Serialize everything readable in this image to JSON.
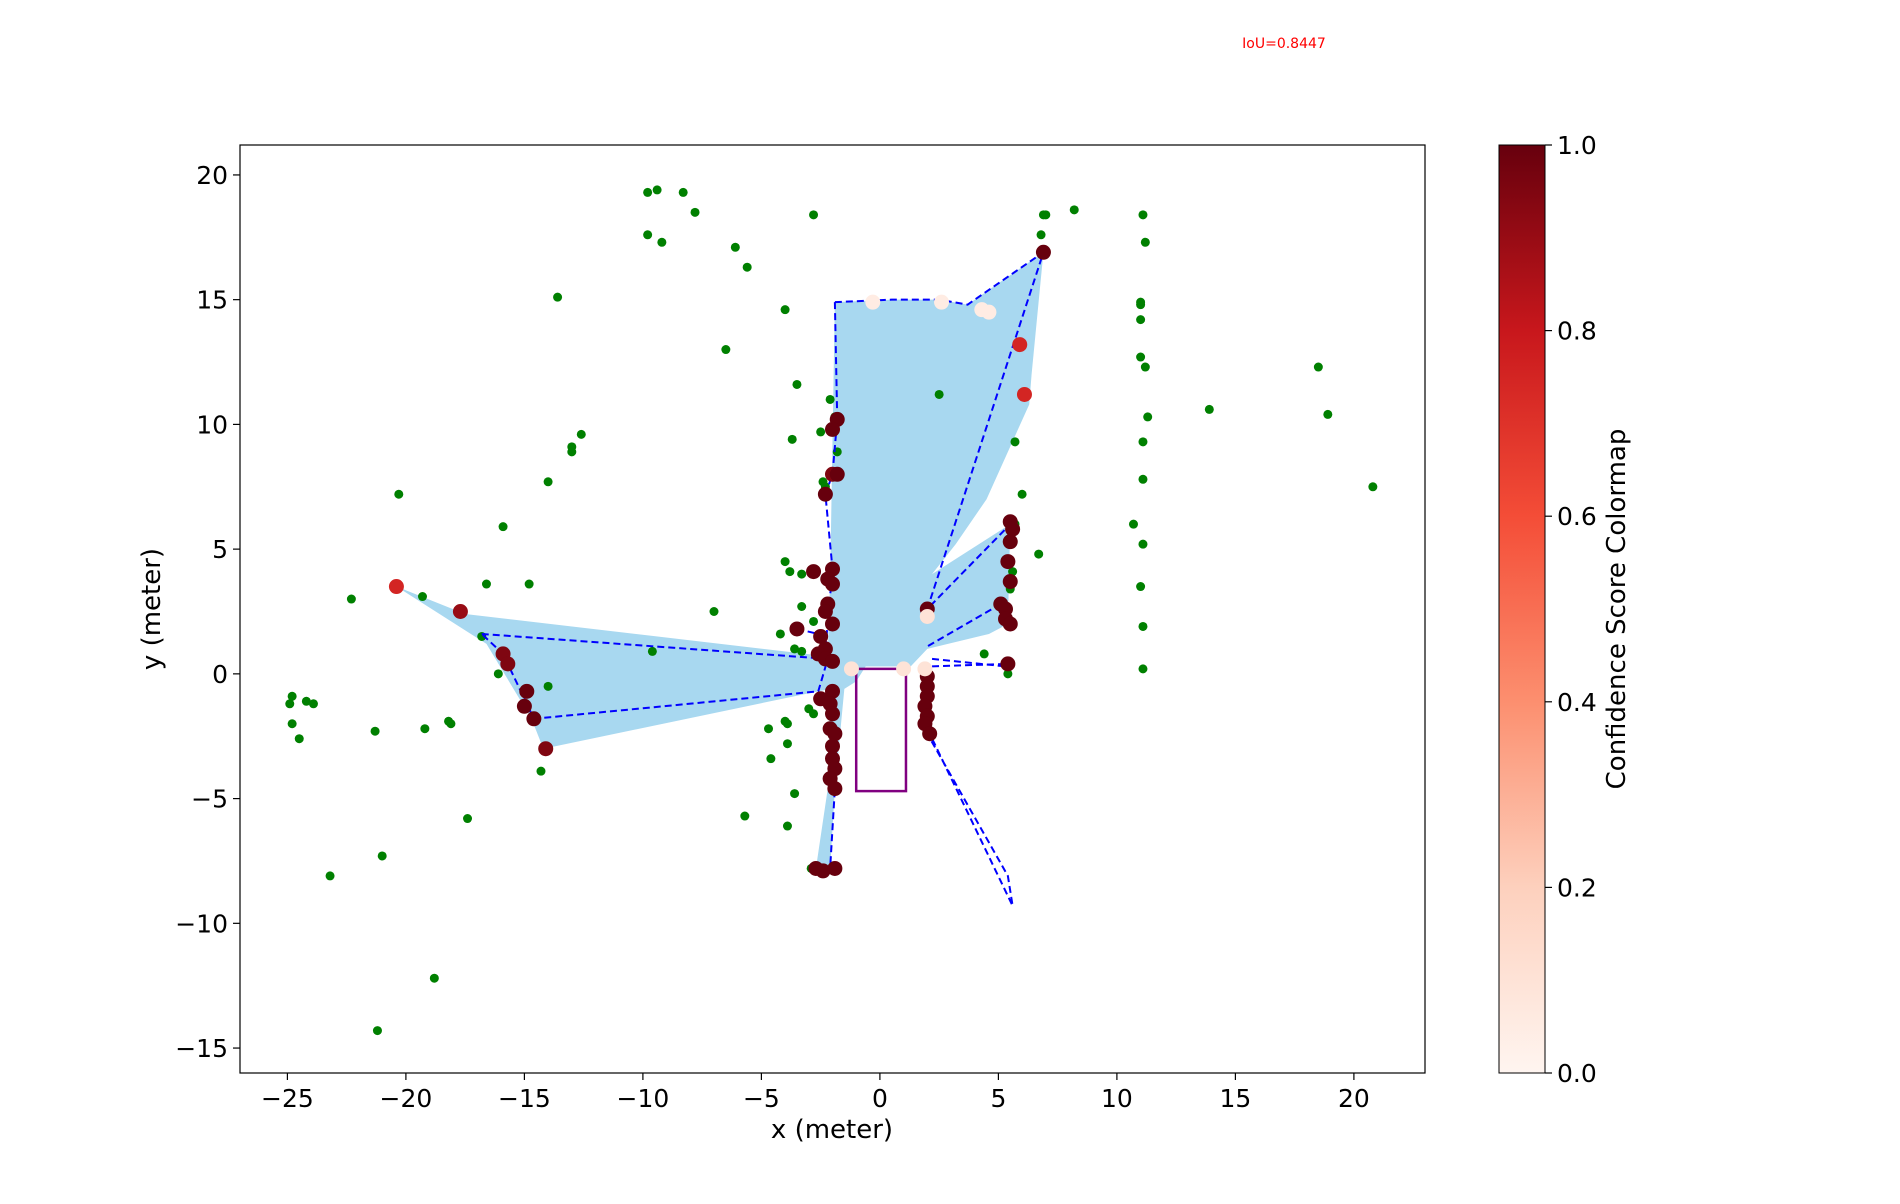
{
  "annotation": {
    "text": "IoU=0.8447",
    "color": "#ff0000"
  },
  "colorbar": {
    "label": "Confidence Score Colormap",
    "ticks": [
      "0.0",
      "0.2",
      "0.4",
      "0.6",
      "0.8",
      "1.0"
    ],
    "range": [
      0.0,
      1.0
    ],
    "colormap": "Reds",
    "stops": [
      "#fff5f0",
      "#fdd0bd",
      "#fc8f6f",
      "#f44d37",
      "#c8171c",
      "#67000d"
    ]
  },
  "colors": {
    "green_points": "#008000",
    "polygon_fill": "#a8d8f0",
    "outline": "#0000ff",
    "vehicle": "#800080"
  },
  "chart_data": {
    "type": "scatter",
    "title": "",
    "xlabel": "x (meter)",
    "ylabel": "y (meter)",
    "xlim": [
      -27,
      23
    ],
    "ylim": [
      -16,
      21.2
    ],
    "xticks": [
      -25,
      -20,
      -15,
      -10,
      -5,
      0,
      5,
      10,
      15,
      20
    ],
    "yticks": [
      -15,
      -10,
      -5,
      0,
      5,
      10,
      15,
      20
    ],
    "xtick_labels": [
      "−25",
      "−20",
      "−15",
      "−10",
      "−5",
      "0",
      "5",
      "10",
      "15",
      "20"
    ],
    "ytick_labels": [
      "−15",
      "−10",
      "−5",
      "0",
      "5",
      "10",
      "15",
      "20"
    ],
    "grid": false,
    "legend": "none",
    "green_points": [
      [
        -9.8,
        19.3
      ],
      [
        -9.4,
        19.4
      ],
      [
        -8.3,
        19.3
      ],
      [
        -7.8,
        18.5
      ],
      [
        -9.8,
        17.6
      ],
      [
        -9.2,
        17.3
      ],
      [
        -6.1,
        17.1
      ],
      [
        -5.6,
        16.3
      ],
      [
        -2.8,
        18.4
      ],
      [
        -13.6,
        15.1
      ],
      [
        -4.0,
        14.6
      ],
      [
        -6.5,
        13.0
      ],
      [
        -3.5,
        11.6
      ],
      [
        -2.1,
        11.0
      ],
      [
        -1.9,
        10.3
      ],
      [
        -2.5,
        9.7
      ],
      [
        -3.7,
        9.4
      ],
      [
        -1.8,
        8.9
      ],
      [
        -12.6,
        9.6
      ],
      [
        -13.0,
        9.1
      ],
      [
        -13.0,
        8.9
      ],
      [
        -14.0,
        7.7
      ],
      [
        -2.4,
        7.7
      ],
      [
        -2.3,
        7.5
      ],
      [
        -20.3,
        7.2
      ],
      [
        -15.9,
        5.9
      ],
      [
        -4.0,
        4.5
      ],
      [
        -3.8,
        4.1
      ],
      [
        -3.3,
        4.0
      ],
      [
        -2.0,
        4.3
      ],
      [
        -22.3,
        3.0
      ],
      [
        -19.3,
        3.1
      ],
      [
        -16.6,
        3.6
      ],
      [
        -14.8,
        3.6
      ],
      [
        -7.0,
        2.5
      ],
      [
        -3.3,
        2.7
      ],
      [
        -2.8,
        2.1
      ],
      [
        -4.2,
        1.6
      ],
      [
        -3.6,
        1.0
      ],
      [
        -3.3,
        0.9
      ],
      [
        -9.6,
        0.9
      ],
      [
        -16.8,
        1.5
      ],
      [
        -15.9,
        0.8
      ],
      [
        -16.1,
        0.0
      ],
      [
        -14.0,
        -0.5
      ],
      [
        -24.8,
        -0.9
      ],
      [
        -24.9,
        -1.2
      ],
      [
        -24.2,
        -1.1
      ],
      [
        -23.9,
        -1.2
      ],
      [
        -24.8,
        -2.0
      ],
      [
        -24.5,
        -2.6
      ],
      [
        -21.3,
        -2.3
      ],
      [
        -19.2,
        -2.2
      ],
      [
        -18.2,
        -1.9
      ],
      [
        -18.1,
        -2.0
      ],
      [
        -14.3,
        -3.9
      ],
      [
        -4.7,
        -2.2
      ],
      [
        -4.0,
        -1.9
      ],
      [
        -3.9,
        -2.0
      ],
      [
        -3.0,
        -1.4
      ],
      [
        -2.8,
        -1.6
      ],
      [
        -3.9,
        -2.8
      ],
      [
        -4.6,
        -3.4
      ],
      [
        -3.6,
        -4.8
      ],
      [
        -5.7,
        -5.7
      ],
      [
        -3.9,
        -6.1
      ],
      [
        -2.9,
        -7.8
      ],
      [
        -17.4,
        -5.8
      ],
      [
        -21.0,
        -7.3
      ],
      [
        -23.2,
        -8.1
      ],
      [
        -18.8,
        -12.2
      ],
      [
        -21.2,
        -14.3
      ],
      [
        2.5,
        11.2
      ],
      [
        5.7,
        9.3
      ],
      [
        6.0,
        7.2
      ],
      [
        6.7,
        4.8
      ],
      [
        5.6,
        4.1
      ],
      [
        5.5,
        3.4
      ],
      [
        5.7,
        6.0
      ],
      [
        4.4,
        0.8
      ],
      [
        5.4,
        0.0
      ],
      [
        6.9,
        18.4
      ],
      [
        7.0,
        18.4
      ],
      [
        8.2,
        18.6
      ],
      [
        6.8,
        17.6
      ],
      [
        11.1,
        18.4
      ],
      [
        11.2,
        17.3
      ],
      [
        11.0,
        14.9
      ],
      [
        11.0,
        14.8
      ],
      [
        11.0,
        14.2
      ],
      [
        11.0,
        12.7
      ],
      [
        11.2,
        12.3
      ],
      [
        11.3,
        10.3
      ],
      [
        11.1,
        9.3
      ],
      [
        11.1,
        7.8
      ],
      [
        10.7,
        6.0
      ],
      [
        11.1,
        5.2
      ],
      [
        11.0,
        3.5
      ],
      [
        11.1,
        1.9
      ],
      [
        11.1,
        0.2
      ],
      [
        13.9,
        10.6
      ],
      [
        18.5,
        12.3
      ],
      [
        18.9,
        10.4
      ],
      [
        20.8,
        7.5
      ]
    ],
    "confidence_points": [
      {
        "x": 6.9,
        "y": 16.9,
        "c": 1.0
      },
      {
        "x": 5.9,
        "y": 13.2,
        "c": 0.75
      },
      {
        "x": 6.1,
        "y": 11.2,
        "c": 0.75
      },
      {
        "x": 4.6,
        "y": 14.5,
        "c": 0.05
      },
      {
        "x": 4.3,
        "y": 14.6,
        "c": 0.05
      },
      {
        "x": 2.6,
        "y": 14.9,
        "c": 0.05
      },
      {
        "x": -0.3,
        "y": 14.9,
        "c": 0.05
      },
      {
        "x": 2.0,
        "y": 2.6,
        "c": 1.0
      },
      {
        "x": 2.0,
        "y": 2.3,
        "c": 0.1
      },
      {
        "x": -20.4,
        "y": 3.5,
        "c": 0.75
      },
      {
        "x": -17.7,
        "y": 2.5,
        "c": 0.9
      },
      {
        "x": -15.9,
        "y": 0.8,
        "c": 0.95
      },
      {
        "x": -15.7,
        "y": 0.4,
        "c": 0.95
      },
      {
        "x": -14.9,
        "y": -0.7,
        "c": 1.0
      },
      {
        "x": -15.0,
        "y": -1.3,
        "c": 1.0
      },
      {
        "x": -14.6,
        "y": -1.8,
        "c": 1.0
      },
      {
        "x": -14.1,
        "y": -3.0,
        "c": 0.95
      },
      {
        "x": -1.8,
        "y": 10.2,
        "c": 1.0
      },
      {
        "x": -2.0,
        "y": 9.8,
        "c": 1.0
      },
      {
        "x": -2.0,
        "y": 8.0,
        "c": 0.95
      },
      {
        "x": -1.8,
        "y": 8.0,
        "c": 1.0
      },
      {
        "x": -2.3,
        "y": 7.2,
        "c": 1.0
      },
      {
        "x": -2.0,
        "y": 4.2,
        "c": 1.0
      },
      {
        "x": -2.2,
        "y": 3.8,
        "c": 1.0
      },
      {
        "x": -2.0,
        "y": 3.6,
        "c": 1.0
      },
      {
        "x": -2.8,
        "y": 4.1,
        "c": 1.0
      },
      {
        "x": -2.2,
        "y": 2.8,
        "c": 1.0
      },
      {
        "x": -2.3,
        "y": 2.5,
        "c": 1.0
      },
      {
        "x": -2.0,
        "y": 2.0,
        "c": 1.0
      },
      {
        "x": -2.5,
        "y": 1.5,
        "c": 1.0
      },
      {
        "x": -2.3,
        "y": 1.0,
        "c": 1.0
      },
      {
        "x": -2.6,
        "y": 0.8,
        "c": 1.0
      },
      {
        "x": -2.3,
        "y": 0.6,
        "c": 1.0
      },
      {
        "x": -2.0,
        "y": 0.5,
        "c": 1.0
      },
      {
        "x": -3.5,
        "y": 1.8,
        "c": 1.0
      },
      {
        "x": -2.0,
        "y": -0.7,
        "c": 1.0
      },
      {
        "x": -2.5,
        "y": -1.0,
        "c": 1.0
      },
      {
        "x": -2.1,
        "y": -1.2,
        "c": 1.0
      },
      {
        "x": -2.0,
        "y": -1.6,
        "c": 1.0
      },
      {
        "x": -2.1,
        "y": -2.2,
        "c": 1.0
      },
      {
        "x": -1.9,
        "y": -2.4,
        "c": 1.0
      },
      {
        "x": -2.0,
        "y": -2.9,
        "c": 1.0
      },
      {
        "x": -2.0,
        "y": -3.4,
        "c": 1.0
      },
      {
        "x": -1.9,
        "y": -3.8,
        "c": 1.0
      },
      {
        "x": -2.1,
        "y": -4.2,
        "c": 1.0
      },
      {
        "x": -1.9,
        "y": -4.6,
        "c": 1.0
      },
      {
        "x": -2.7,
        "y": -7.8,
        "c": 1.0
      },
      {
        "x": -2.4,
        "y": -7.9,
        "c": 1.0
      },
      {
        "x": -1.9,
        "y": -7.8,
        "c": 1.0
      },
      {
        "x": 2.0,
        "y": -0.1,
        "c": 1.0
      },
      {
        "x": 2.0,
        "y": -0.5,
        "c": 1.0
      },
      {
        "x": 2.0,
        "y": -0.9,
        "c": 1.0
      },
      {
        "x": 1.9,
        "y": -1.3,
        "c": 1.0
      },
      {
        "x": 2.0,
        "y": -1.7,
        "c": 1.0
      },
      {
        "x": 1.9,
        "y": -2.0,
        "c": 1.0
      },
      {
        "x": 2.1,
        "y": -2.4,
        "c": 1.0
      },
      {
        "x": 5.5,
        "y": 6.1,
        "c": 1.0
      },
      {
        "x": 5.6,
        "y": 5.8,
        "c": 1.0
      },
      {
        "x": 5.5,
        "y": 5.3,
        "c": 1.0
      },
      {
        "x": 5.4,
        "y": 4.5,
        "c": 1.0
      },
      {
        "x": 5.5,
        "y": 3.7,
        "c": 1.0
      },
      {
        "x": 5.1,
        "y": 2.8,
        "c": 1.0
      },
      {
        "x": 5.3,
        "y": 2.6,
        "c": 1.0
      },
      {
        "x": 5.3,
        "y": 2.2,
        "c": 1.0
      },
      {
        "x": 5.5,
        "y": 2.0,
        "c": 1.0
      },
      {
        "x": 5.4,
        "y": 0.4,
        "c": 1.0
      },
      {
        "x": 1.9,
        "y": 0.2,
        "c": 0.1
      },
      {
        "x": -1.2,
        "y": 0.2,
        "c": 0.1
      },
      {
        "x": 1.0,
        "y": 0.2,
        "c": 0.1
      }
    ],
    "free_space_polygon": [
      [
        -1.9,
        14.9
      ],
      [
        0.5,
        15.0
      ],
      [
        2.5,
        15.0
      ],
      [
        3.7,
        14.8
      ],
      [
        6.9,
        16.9
      ],
      [
        6.4,
        12.0
      ],
      [
        6.3,
        10.8
      ],
      [
        4.5,
        7.0
      ],
      [
        3.2,
        5.2
      ],
      [
        2.2,
        4.0
      ],
      [
        5.5,
        6.0
      ],
      [
        5.4,
        2.0
      ],
      [
        4.6,
        1.6
      ],
      [
        2.0,
        1.0
      ],
      [
        1.3,
        0.3
      ],
      [
        -0.6,
        0.3
      ],
      [
        -1.0,
        -0.3
      ],
      [
        -1.5,
        -0.6
      ],
      [
        -1.9,
        -4.6
      ],
      [
        -2.1,
        -7.8
      ],
      [
        -2.7,
        -7.8
      ],
      [
        -2.2,
        -4.6
      ],
      [
        -2.1,
        -0.6
      ],
      [
        -14.2,
        -3.0
      ],
      [
        -14.7,
        -1.8
      ],
      [
        -16.6,
        1.2
      ],
      [
        -20.4,
        3.5
      ],
      [
        -17.5,
        2.4
      ],
      [
        -2.2,
        0.7
      ],
      [
        -2.1,
        3.8
      ]
    ],
    "dashed_paths": [
      [
        [
          -1.9,
          14.9
        ],
        [
          0.5,
          15.0
        ],
        [
          2.5,
          15.0
        ],
        [
          3.7,
          14.8
        ],
        [
          6.9,
          16.9
        ],
        [
          2.0,
          2.6
        ],
        [
          5.5,
          6.0
        ]
      ],
      [
        [
          -1.9,
          14.9
        ],
        [
          -1.8,
          10.2
        ],
        [
          -2.0,
          8.0
        ],
        [
          -2.3,
          7.2
        ],
        [
          -2.0,
          4.2
        ],
        [
          -2.3,
          1.0
        ],
        [
          -2.0,
          0.5
        ]
      ],
      [
        [
          -16.8,
          1.6
        ],
        [
          -2.2,
          0.6
        ],
        [
          -2.6,
          -0.7
        ],
        [
          -14.6,
          -1.8
        ],
        [
          -15.9,
          0.8
        ],
        [
          -16.8,
          1.6
        ]
      ],
      [
        [
          -3.5,
          1.8
        ],
        [
          -2.6,
          1.6
        ]
      ],
      [
        [
          -2.0,
          -0.7
        ],
        [
          -1.9,
          -4.6
        ],
        [
          -2.1,
          -7.8
        ]
      ],
      [
        [
          2.0,
          -0.1
        ],
        [
          2.0,
          -2.4
        ],
        [
          5.4,
          -8.1
        ],
        [
          5.6,
          -9.3
        ],
        [
          1.9,
          -2.0
        ]
      ],
      [
        [
          2.2,
          0.3
        ],
        [
          5.4,
          0.4
        ]
      ],
      [
        [
          2.2,
          0.6
        ],
        [
          5.3,
          0.3
        ]
      ],
      [
        [
          5.1,
          2.8
        ],
        [
          2.0,
          1.1
        ]
      ]
    ],
    "vehicle_rect": {
      "x0": -1.0,
      "x1": 1.1,
      "y0": -4.7,
      "y1": 0.2
    }
  }
}
